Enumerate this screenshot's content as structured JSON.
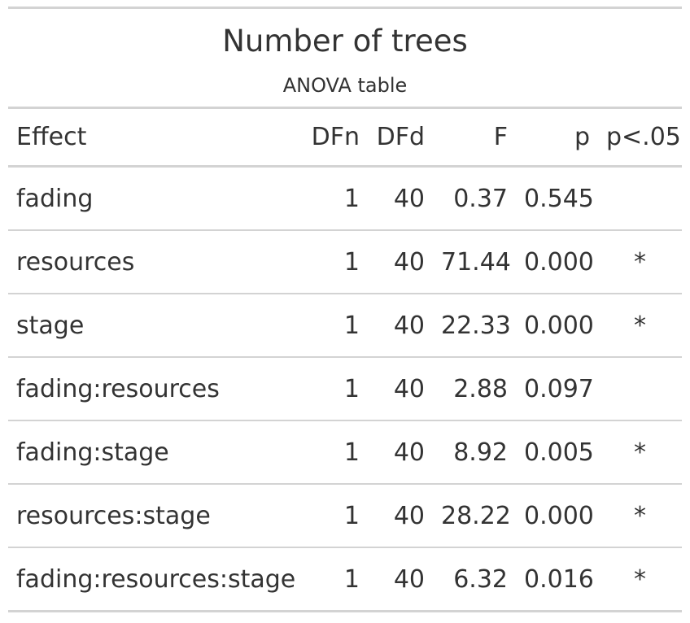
{
  "header": {
    "title": "Number of trees",
    "subtitle": "ANOVA table"
  },
  "table": {
    "columns": [
      "Effect",
      "DFn",
      "DFd",
      "F",
      "p",
      "p<.05"
    ],
    "rows": [
      {
        "effect": "fading",
        "dfn": "1",
        "dfd": "40",
        "f": "0.37",
        "p": "0.545",
        "sig": ""
      },
      {
        "effect": "resources",
        "dfn": "1",
        "dfd": "40",
        "f": "71.44",
        "p": "0.000",
        "sig": "*"
      },
      {
        "effect": "stage",
        "dfn": "1",
        "dfd": "40",
        "f": "22.33",
        "p": "0.000",
        "sig": "*"
      },
      {
        "effect": "fading:resources",
        "dfn": "1",
        "dfd": "40",
        "f": "2.88",
        "p": "0.097",
        "sig": ""
      },
      {
        "effect": "fading:stage",
        "dfn": "1",
        "dfd": "40",
        "f": "8.92",
        "p": "0.005",
        "sig": "*"
      },
      {
        "effect": "resources:stage",
        "dfn": "1",
        "dfd": "40",
        "f": "28.22",
        "p": "0.000",
        "sig": "*"
      },
      {
        "effect": "fading:resources:stage",
        "dfn": "1",
        "dfd": "40",
        "f": "6.32",
        "p": "0.016",
        "sig": "*"
      }
    ]
  }
}
